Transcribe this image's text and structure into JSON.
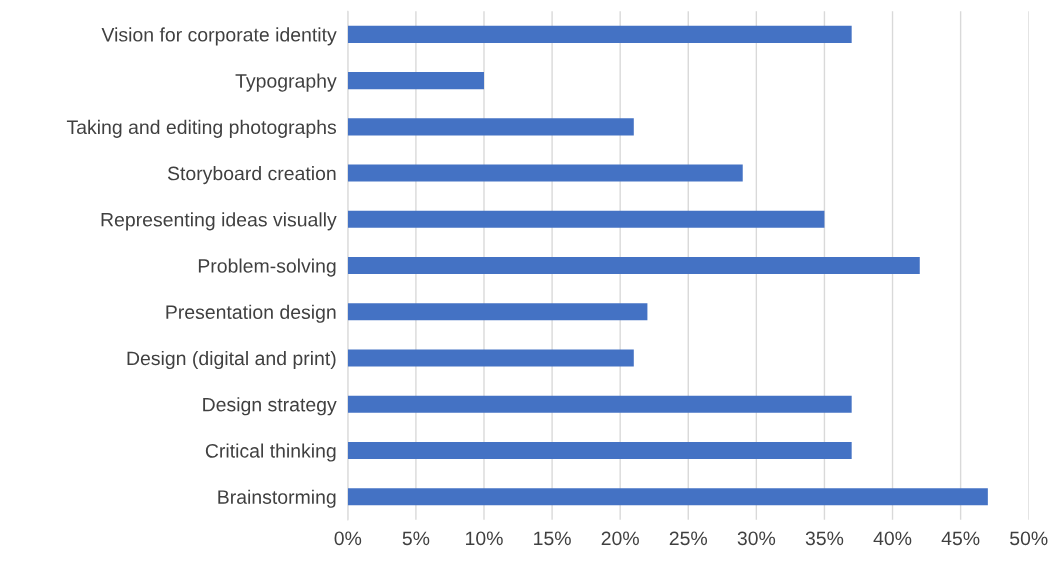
{
  "chart_data": {
    "type": "bar",
    "orientation": "horizontal",
    "categories": [
      "Vision for corporate identity",
      "Typography",
      "Taking and editing photographs",
      "Storyboard creation",
      "Representing ideas visually",
      "Problem-solving",
      "Presentation design",
      "Design (digital and print)",
      "Design strategy",
      "Critical thinking",
      "Brainstorming"
    ],
    "values": [
      37,
      10,
      21,
      29,
      35,
      42,
      22,
      21,
      37,
      37,
      47
    ],
    "color": "#4472c4",
    "xlim": [
      0,
      50
    ],
    "xticks": [
      {
        "value": 0,
        "label": "0%"
      },
      {
        "value": 5,
        "label": "5%"
      },
      {
        "value": 10,
        "label": "10%"
      },
      {
        "value": 15,
        "label": "15%"
      },
      {
        "value": 20,
        "label": "20%"
      },
      {
        "value": 25,
        "label": "25%"
      },
      {
        "value": 30,
        "label": "30%"
      },
      {
        "value": 35,
        "label": "35%"
      },
      {
        "value": 40,
        "label": "40%"
      },
      {
        "value": 45,
        "label": "45%"
      },
      {
        "value": 50,
        "label": "50%"
      }
    ],
    "grid": "x"
  }
}
